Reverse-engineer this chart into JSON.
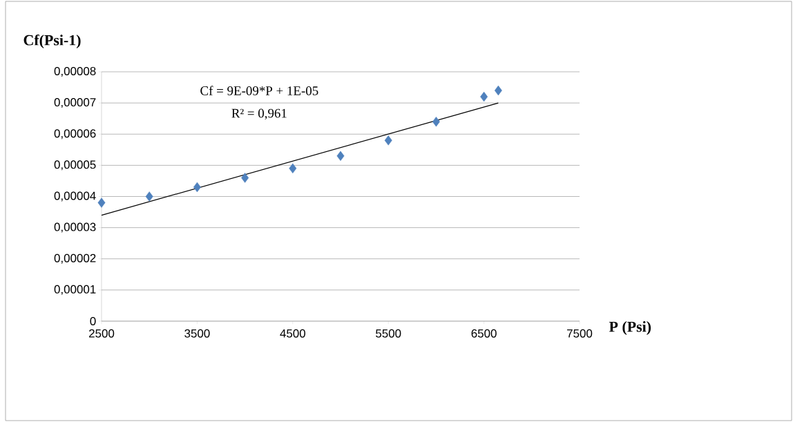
{
  "chart_data": {
    "type": "scatter",
    "xlabel": "P (Psi)",
    "ylabel": "Cf(Psi-1)",
    "annotations": [
      "Cf = 9E-09*P + 1E-05",
      "R² = 0,961"
    ],
    "series": [
      {
        "color": "#4f81bd",
        "marker": "diamond",
        "x": [
          2500,
          3000,
          3500,
          4000,
          4500,
          5000,
          5500,
          6000,
          6500,
          6650
        ],
        "values": [
          3.8e-05,
          4e-05,
          4.3e-05,
          4.6e-05,
          4.9e-05,
          5.3e-05,
          5.8e-05,
          6.4e-05,
          7.2e-05,
          7.4e-05
        ]
      },
      {
        "type": "line",
        "color": "#000000",
        "marker": "none",
        "x": [
          2500,
          6650
        ],
        "values": [
          3.4e-05,
          7e-05
        ]
      }
    ],
    "xlim": [
      2500,
      7500
    ],
    "xticks": [
      2500,
      3500,
      4500,
      5500,
      6500,
      7500
    ],
    "ylim": [
      0,
      8e-05
    ],
    "yticks": [
      {
        "value": 0,
        "label": "0"
      },
      {
        "value": 1e-05,
        "label": "0,00001"
      },
      {
        "value": 2e-05,
        "label": "0,00002"
      },
      {
        "value": 3e-05,
        "label": "0,00003"
      },
      {
        "value": 4e-05,
        "label": "0,00004"
      },
      {
        "value": 5e-05,
        "label": "0,00005"
      },
      {
        "value": 6e-05,
        "label": "0,00006"
      },
      {
        "value": 7e-05,
        "label": "0,00007"
      },
      {
        "value": 8e-05,
        "label": "0,00008"
      }
    ],
    "grid": "y"
  }
}
